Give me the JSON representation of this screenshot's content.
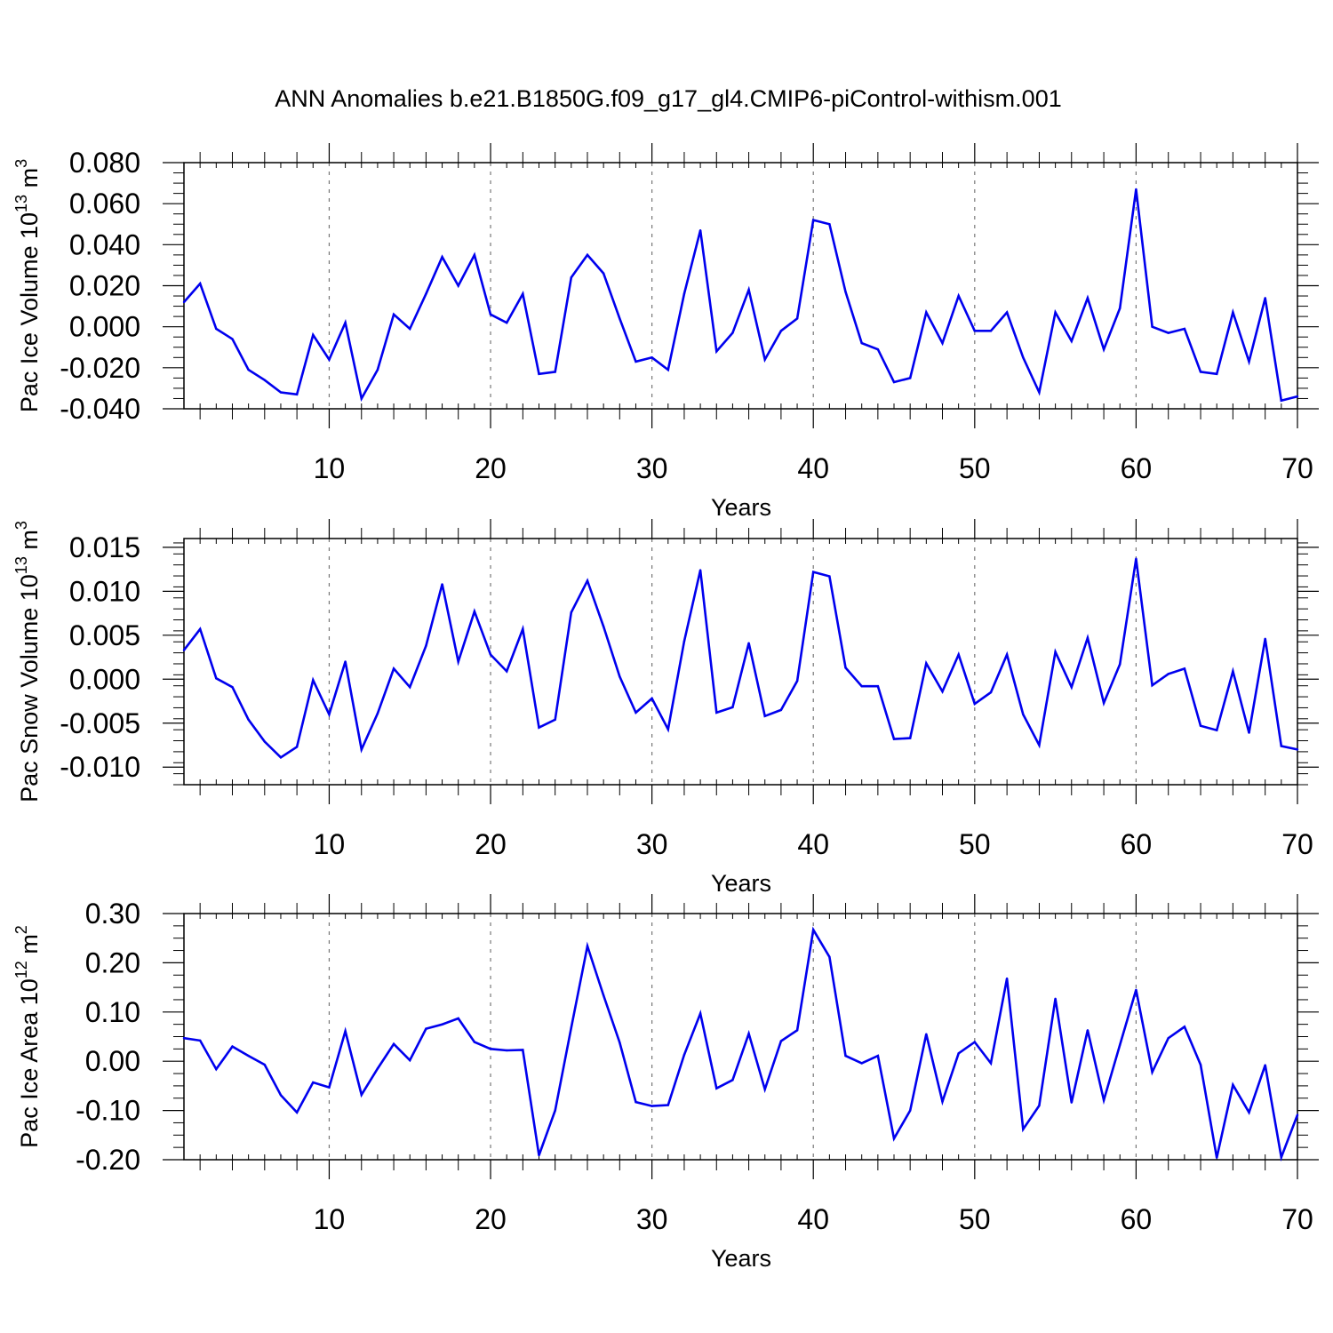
{
  "title": "ANN Anomalies b.e21.B1850G.f09_g17_gl4.CMIP6-piControl-withism.001",
  "line_color": "#0000ee",
  "chart_data": [
    {
      "type": "line",
      "ylabel": {
        "main": "Pac Ice Volume 10",
        "exp": "13",
        "unit": " m",
        "unit_exp": "3"
      },
      "xlabel": "Years",
      "xlim": [
        1,
        70
      ],
      "ylim": [
        -0.04,
        0.08
      ],
      "yticks": [
        -0.04,
        -0.02,
        0.0,
        0.02,
        0.04,
        0.06,
        0.08
      ],
      "ytick_labels": [
        "-0.040",
        "-0.020",
        "0.000",
        "0.020",
        "0.040",
        "0.060",
        "0.080"
      ],
      "xticks": [
        10,
        20,
        30,
        40,
        50,
        60,
        70
      ],
      "xtick_labels": [
        "10",
        "20",
        "30",
        "40",
        "50",
        "60",
        "70"
      ],
      "x": [
        1,
        2,
        3,
        4,
        5,
        6,
        7,
        8,
        9,
        10,
        11,
        12,
        13,
        14,
        15,
        16,
        17,
        18,
        19,
        20,
        21,
        22,
        23,
        24,
        25,
        26,
        27,
        28,
        29,
        30,
        31,
        32,
        33,
        34,
        35,
        36,
        37,
        38,
        39,
        40,
        41,
        42,
        43,
        44,
        45,
        46,
        47,
        48,
        49,
        50,
        51,
        52,
        53,
        54,
        55,
        56,
        57,
        58,
        59,
        60,
        61,
        62,
        63,
        64,
        65,
        66,
        67,
        68,
        69,
        70
      ],
      "values": [
        0.012,
        0.021,
        -0.001,
        -0.006,
        -0.021,
        -0.026,
        -0.032,
        -0.033,
        -0.004,
        -0.016,
        0.002,
        -0.035,
        -0.021,
        0.006,
        -0.001,
        0.016,
        0.034,
        0.02,
        0.035,
        0.006,
        0.002,
        0.016,
        -0.023,
        -0.022,
        0.024,
        0.035,
        0.026,
        0.004,
        -0.017,
        -0.015,
        -0.021,
        0.016,
        0.047,
        -0.012,
        -0.003,
        0.018,
        -0.016,
        -0.002,
        0.004,
        0.052,
        0.05,
        0.017,
        -0.008,
        -0.011,
        -0.027,
        -0.025,
        0.007,
        -0.008,
        0.015,
        -0.002,
        -0.002,
        0.007,
        -0.015,
        -0.032,
        0.007,
        -0.007,
        0.014,
        -0.011,
        0.009,
        0.067,
        0.0,
        -0.003,
        -0.001,
        -0.022,
        -0.023,
        0.007,
        -0.017,
        0.014,
        -0.036,
        -0.034
      ],
      "series_name": "Pac Ice Volume"
    },
    {
      "type": "line",
      "ylabel": {
        "main": "Pac Snow Volume 10",
        "exp": "13",
        "unit": " m",
        "unit_exp": "3"
      },
      "xlabel": "Years",
      "xlim": [
        1,
        70
      ],
      "ylim": [
        -0.012,
        0.016
      ],
      "yticks": [
        -0.01,
        -0.005,
        0.0,
        0.005,
        0.01,
        0.015
      ],
      "ytick_labels": [
        "-0.010",
        "-0.005",
        "0.000",
        "0.005",
        "0.010",
        "0.015"
      ],
      "xticks": [
        10,
        20,
        30,
        40,
        50,
        60,
        70
      ],
      "xtick_labels": [
        "10",
        "20",
        "30",
        "40",
        "50",
        "60",
        "70"
      ],
      "x": [
        1,
        2,
        3,
        4,
        5,
        6,
        7,
        8,
        9,
        10,
        11,
        12,
        13,
        14,
        15,
        16,
        17,
        18,
        19,
        20,
        21,
        22,
        23,
        24,
        25,
        26,
        27,
        28,
        29,
        30,
        31,
        32,
        33,
        34,
        35,
        36,
        37,
        38,
        39,
        40,
        41,
        42,
        43,
        44,
        45,
        46,
        47,
        48,
        49,
        50,
        51,
        52,
        53,
        54,
        55,
        56,
        57,
        58,
        59,
        60,
        61,
        62,
        63,
        64,
        65,
        66,
        67,
        68,
        69,
        70
      ],
      "values": [
        0.0033,
        0.0057,
        0.0001,
        -0.0009,
        -0.0046,
        -0.0071,
        -0.0089,
        -0.0077,
        -0.0001,
        -0.004,
        0.002,
        -0.008,
        -0.0039,
        0.0012,
        -0.0009,
        0.0038,
        0.0108,
        0.002,
        0.0077,
        0.0028,
        0.0009,
        0.0057,
        -0.0055,
        -0.0046,
        0.0076,
        0.0112,
        0.006,
        0.0003,
        -0.0038,
        -0.0022,
        -0.0057,
        0.0043,
        0.0124,
        -0.0038,
        -0.0032,
        0.0041,
        -0.0042,
        -0.0035,
        -0.0002,
        0.0122,
        0.0117,
        0.0013,
        -0.0008,
        -0.0008,
        -0.0068,
        -0.0067,
        0.0018,
        -0.0014,
        0.0028,
        -0.0028,
        -0.0015,
        0.0028,
        -0.004,
        -0.0075,
        0.0031,
        -0.0009,
        0.0047,
        -0.0027,
        0.0017,
        0.0137,
        -0.0007,
        0.0006,
        0.0012,
        -0.0053,
        -0.0058,
        0.0009,
        -0.0061,
        0.0046,
        -0.0076,
        -0.008
      ],
      "series_name": "Pac Snow Volume"
    },
    {
      "type": "line",
      "ylabel": {
        "main": "Pac Ice Area 10",
        "exp": "12",
        "unit": " m",
        "unit_exp": "2"
      },
      "xlabel": "Years",
      "xlim": [
        1,
        70
      ],
      "ylim": [
        -0.2,
        0.3
      ],
      "yticks": [
        -0.2,
        -0.1,
        0.0,
        0.1,
        0.2,
        0.3
      ],
      "ytick_labels": [
        "-0.20",
        "-0.10",
        "0.00",
        "0.10",
        "0.20",
        "0.30"
      ],
      "xticks": [
        10,
        20,
        30,
        40,
        50,
        60,
        70
      ],
      "xtick_labels": [
        "10",
        "20",
        "30",
        "40",
        "50",
        "60",
        "70"
      ],
      "x": [
        1,
        2,
        3,
        4,
        5,
        6,
        7,
        8,
        9,
        10,
        11,
        12,
        13,
        14,
        15,
        16,
        17,
        18,
        19,
        20,
        21,
        22,
        23,
        24,
        25,
        26,
        27,
        28,
        29,
        30,
        31,
        32,
        33,
        34,
        35,
        36,
        37,
        38,
        39,
        40,
        41,
        42,
        43,
        44,
        45,
        46,
        47,
        48,
        49,
        50,
        51,
        52,
        53,
        54,
        55,
        56,
        57,
        58,
        59,
        60,
        61,
        62,
        63,
        64,
        65,
        66,
        67,
        68,
        69,
        70
      ],
      "values": [
        0.047,
        0.042,
        -0.016,
        0.03,
        0.011,
        -0.007,
        -0.069,
        -0.104,
        -0.043,
        -0.053,
        0.061,
        -0.068,
        -0.015,
        0.035,
        0.002,
        0.066,
        0.075,
        0.087,
        0.039,
        0.025,
        0.022,
        0.023,
        -0.191,
        -0.1,
        0.068,
        0.234,
        0.134,
        0.038,
        -0.083,
        -0.091,
        -0.089,
        0.013,
        0.097,
        -0.055,
        -0.038,
        0.056,
        -0.057,
        0.041,
        0.063,
        0.267,
        0.212,
        0.011,
        -0.004,
        0.011,
        -0.157,
        -0.1,
        0.055,
        -0.082,
        0.016,
        0.039,
        -0.004,
        0.168,
        -0.138,
        -0.09,
        0.127,
        -0.084,
        0.063,
        -0.079,
        0.033,
        0.145,
        -0.022,
        0.047,
        0.07,
        -0.007,
        -0.196,
        -0.048,
        -0.104,
        -0.008,
        -0.195,
        -0.109
      ],
      "series_name": "Pac Ice Area"
    }
  ]
}
